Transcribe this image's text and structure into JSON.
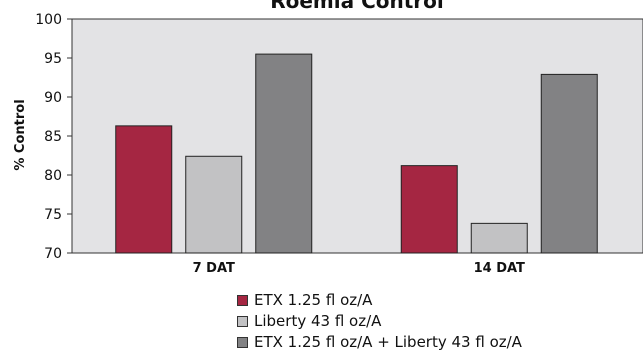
{
  "chart_data": {
    "type": "bar",
    "title": "Roemia Control",
    "ylabel": "% Control",
    "xlabel": "",
    "ylim": [
      70,
      100
    ],
    "yticks": [
      70,
      75,
      80,
      85,
      90,
      95,
      100
    ],
    "categories": [
      "7 DAT",
      "14 DAT"
    ],
    "series": [
      {
        "name": "ETX 1.25 fl oz/A",
        "color": "#a52642",
        "values": [
          86.3,
          81.2
        ]
      },
      {
        "name": "Liberty 43 fl oz/A",
        "color": "#c2c2c4",
        "values": [
          82.4,
          73.8
        ]
      },
      {
        "name": "ETX 1.25 fl oz/A + Liberty 43 fl oz/A",
        "color": "#828284",
        "values": [
          95.5,
          92.9
        ]
      }
    ],
    "grid": false,
    "legend_position": "bottom",
    "plot_background": "#e3e3e5"
  }
}
